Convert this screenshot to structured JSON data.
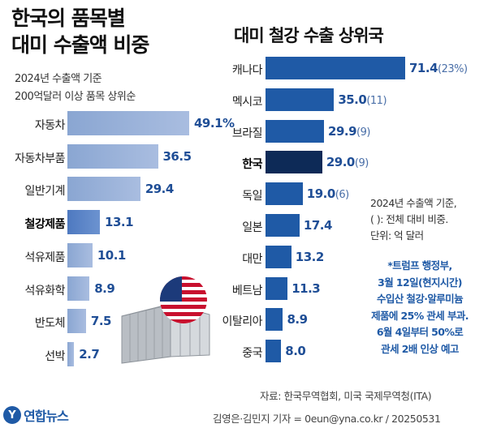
{
  "left_title_line1": "한국의 품목별",
  "left_title_line2": "대미 수출액 비중",
  "left_sub1": "2024년 수출액 기준",
  "left_sub2": "200억달러 이상 품목 상위순",
  "right_title": "대미 철강 수출 상위국",
  "note_lines": [
    "2024년 수출액 기준,",
    "( ): 전체 대비 비중.",
    "단위: 억 달러"
  ],
  "trump_lines": [
    "*트럼프 행정부,",
    "3월 12일(현지시간)",
    "수입산 철강·알루미늄",
    "제품에 25% 관세 부과.",
    "6월 4일부터 50%로",
    "관세 2배 인상 예고"
  ],
  "source": "자료: 한국무역협회, 미국 국제무역청(ITA)",
  "credit": "김영은·김민지 기자 = 0eun@yna.co.kr / 20250531",
  "logo_mark": "Y",
  "logo_text": "연합뉴스",
  "chart_data": [
    {
      "type": "bar",
      "orientation": "horizontal",
      "title": "한국의 품목별 대미 수출액 비중",
      "categories": [
        "자동차",
        "자동차부품",
        "일반기계",
        "철강제품",
        "석유제품",
        "석유화학",
        "반도체",
        "선박"
      ],
      "values": [
        49.1,
        36.5,
        29.4,
        13.1,
        10.1,
        8.9,
        7.5,
        2.7
      ],
      "value_labels": [
        "49.1%",
        "36.5",
        "29.4",
        "13.1",
        "10.1",
        "8.9",
        "7.5",
        "2.7"
      ],
      "highlight": "철강제품",
      "xlim": [
        0,
        60
      ],
      "grid": false
    },
    {
      "type": "bar",
      "orientation": "horizontal",
      "title": "대미 철강 수출 상위국",
      "categories": [
        "캐나다",
        "멕시코",
        "브라질",
        "한국",
        "독일",
        "일본",
        "대만",
        "베트남",
        "이탈리아",
        "중국"
      ],
      "values": [
        71.4,
        35.0,
        29.9,
        29.0,
        19.0,
        17.4,
        13.2,
        11.3,
        8.9,
        8.0
      ],
      "shares": [
        "(23%)",
        "(11)",
        "(9)",
        "(9)",
        "(6)",
        "",
        "",
        "",
        "",
        ""
      ],
      "highlight": "한국",
      "xlim": [
        0,
        80
      ],
      "grid": false
    }
  ],
  "colors": {
    "left_bar": "#9cb3db",
    "left_highlight": "#5b84c8",
    "right_bar": "#1f5aa6",
    "right_highlight": "#0d2a57",
    "value_text": "#1f4e96"
  },
  "icons": [
    "usa-flag-icon",
    "shipping-container-icon",
    "yonhap-logo-icon"
  ]
}
